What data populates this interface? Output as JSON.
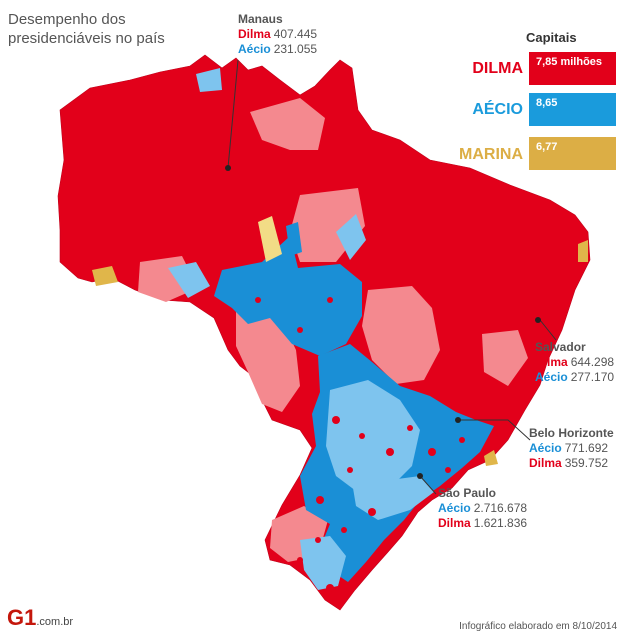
{
  "title": "Desempenho dos presidenciáveis no país",
  "colors": {
    "dilma": "#e2001a",
    "dilma_light": "#f4898f",
    "aecio": "#1a8fd6",
    "aecio_light": "#7ec4ee",
    "marina": "#e0b64a",
    "marina_light": "#f2dc86"
  },
  "callouts": {
    "manaus": {
      "city": "Manaus",
      "rows": [
        {
          "cand": "Dilma",
          "value": "407.445"
        },
        {
          "cand": "Aécio",
          "value": "231.055"
        }
      ]
    },
    "salvador": {
      "city": "Salvador",
      "rows": [
        {
          "cand": "Dilma",
          "value": "644.298"
        },
        {
          "cand": "Aécio",
          "value": "277.170"
        }
      ]
    },
    "bh": {
      "city": "Belo Horizonte",
      "rows": [
        {
          "cand": "Aécio",
          "value": "771.692"
        },
        {
          "cand": "Dilma",
          "value": "359.752"
        }
      ]
    },
    "sp": {
      "city": "São Paulo",
      "rows": [
        {
          "cand": "Aécio",
          "value": "2.716.678"
        },
        {
          "cand": "Dilma",
          "value": "1.621.836"
        }
      ]
    }
  },
  "capitais": {
    "title": "Capitais",
    "items": [
      {
        "label": "DILMA",
        "value": "7,85 milhões",
        "color": "#e2001a"
      },
      {
        "label": "AÉCIO",
        "value": "8,65",
        "color": "#1a9bdc"
      },
      {
        "label": "MARINA",
        "value": "6,77",
        "color": "#dcae45"
      }
    ]
  },
  "footer": {
    "logo": "G1",
    "domain": ".com.br",
    "note": "Infográfico elaborado em 8/10/2014"
  }
}
